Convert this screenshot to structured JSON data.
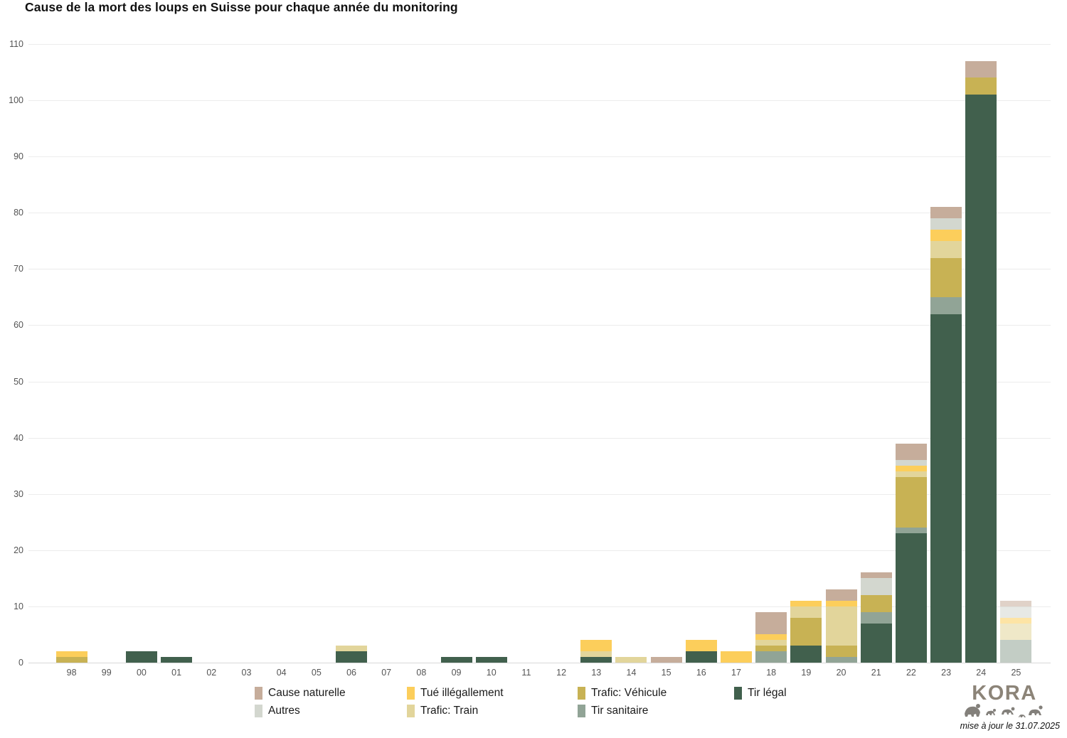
{
  "title": "Cause de la mort des loups en Suisse pour chaque année du monitoring",
  "footer": {
    "note": "mise à jour le 31.07.2025"
  },
  "logo": {
    "text": "KORA"
  },
  "chart_data": {
    "type": "bar",
    "stacked": true,
    "title": "Cause de la mort des loups en Suisse pour chaque année du monitoring",
    "xlabel": "",
    "ylabel": "",
    "ylim": [
      0,
      110
    ],
    "yticks": [
      0,
      10,
      20,
      30,
      40,
      50,
      60,
      70,
      80,
      90,
      100,
      110
    ],
    "grid": true,
    "legend_position": "bottom",
    "muted_category": "25",
    "categories": [
      "98",
      "99",
      "00",
      "01",
      "02",
      "03",
      "04",
      "05",
      "06",
      "07",
      "08",
      "09",
      "10",
      "11",
      "12",
      "13",
      "14",
      "15",
      "16",
      "17",
      "18",
      "19",
      "20",
      "21",
      "22",
      "23",
      "24",
      "25"
    ],
    "series": [
      {
        "name": "Tir légal",
        "color": "#41604D",
        "values": [
          0,
          0,
          2,
          1,
          0,
          0,
          0,
          0,
          2,
          0,
          0,
          1,
          1,
          0,
          0,
          1,
          0,
          0,
          2,
          0,
          0,
          3,
          0,
          7,
          23,
          62,
          101,
          0
        ]
      },
      {
        "name": "Tir sanitaire",
        "color": "#91A496",
        "values": [
          0,
          0,
          0,
          0,
          0,
          0,
          0,
          0,
          0,
          0,
          0,
          0,
          0,
          0,
          0,
          0,
          0,
          0,
          0,
          0,
          2,
          0,
          1,
          2,
          1,
          3,
          0,
          4
        ]
      },
      {
        "name": "Trafic: Véhicule",
        "color": "#C8B254",
        "values": [
          1,
          0,
          0,
          0,
          0,
          0,
          0,
          0,
          0,
          0,
          0,
          0,
          0,
          0,
          0,
          0,
          0,
          0,
          0,
          0,
          1,
          5,
          2,
          3,
          9,
          7,
          3,
          0
        ]
      },
      {
        "name": "Trafic: Train",
        "color": "#E2D59B",
        "values": [
          0,
          0,
          0,
          0,
          0,
          0,
          0,
          0,
          1,
          0,
          0,
          0,
          0,
          0,
          0,
          1,
          1,
          0,
          0,
          0,
          1,
          2,
          7,
          0,
          1,
          3,
          0,
          3
        ]
      },
      {
        "name": "Tué illégallement",
        "color": "#FCCE5B",
        "values": [
          1,
          0,
          0,
          0,
          0,
          0,
          0,
          0,
          0,
          0,
          0,
          0,
          0,
          0,
          0,
          2,
          0,
          0,
          2,
          2,
          1,
          1,
          1,
          0,
          1,
          2,
          0,
          1
        ]
      },
      {
        "name": "Autres",
        "color": "#D3D7CF",
        "values": [
          0,
          0,
          0,
          0,
          0,
          0,
          0,
          0,
          0,
          0,
          0,
          0,
          0,
          0,
          0,
          0,
          0,
          0,
          0,
          0,
          0,
          0,
          0,
          3,
          1,
          2,
          0,
          2
        ]
      },
      {
        "name": "Cause naturelle",
        "color": "#C6AD9B",
        "values": [
          0,
          0,
          0,
          0,
          0,
          0,
          0,
          0,
          0,
          0,
          0,
          0,
          0,
          0,
          0,
          0,
          0,
          1,
          0,
          0,
          4,
          0,
          2,
          1,
          3,
          2,
          3,
          1
        ]
      }
    ],
    "legend_items": [
      {
        "label": "Cause naturelle",
        "color": "#C6AD9B"
      },
      {
        "label": "Autres",
        "color": "#D3D7CF"
      },
      {
        "label": "Tué illégallement",
        "color": "#FCCE5B"
      },
      {
        "label": "Trafic: Train",
        "color": "#E2D59B"
      },
      {
        "label": "Trafic: Véhicule",
        "color": "#C8B254"
      },
      {
        "label": "Tir sanitaire",
        "color": "#91A496"
      },
      {
        "label": "Tir légal",
        "color": "#41604D"
      }
    ],
    "legend_column_widths": [
      214,
      240,
      220,
      120
    ]
  }
}
